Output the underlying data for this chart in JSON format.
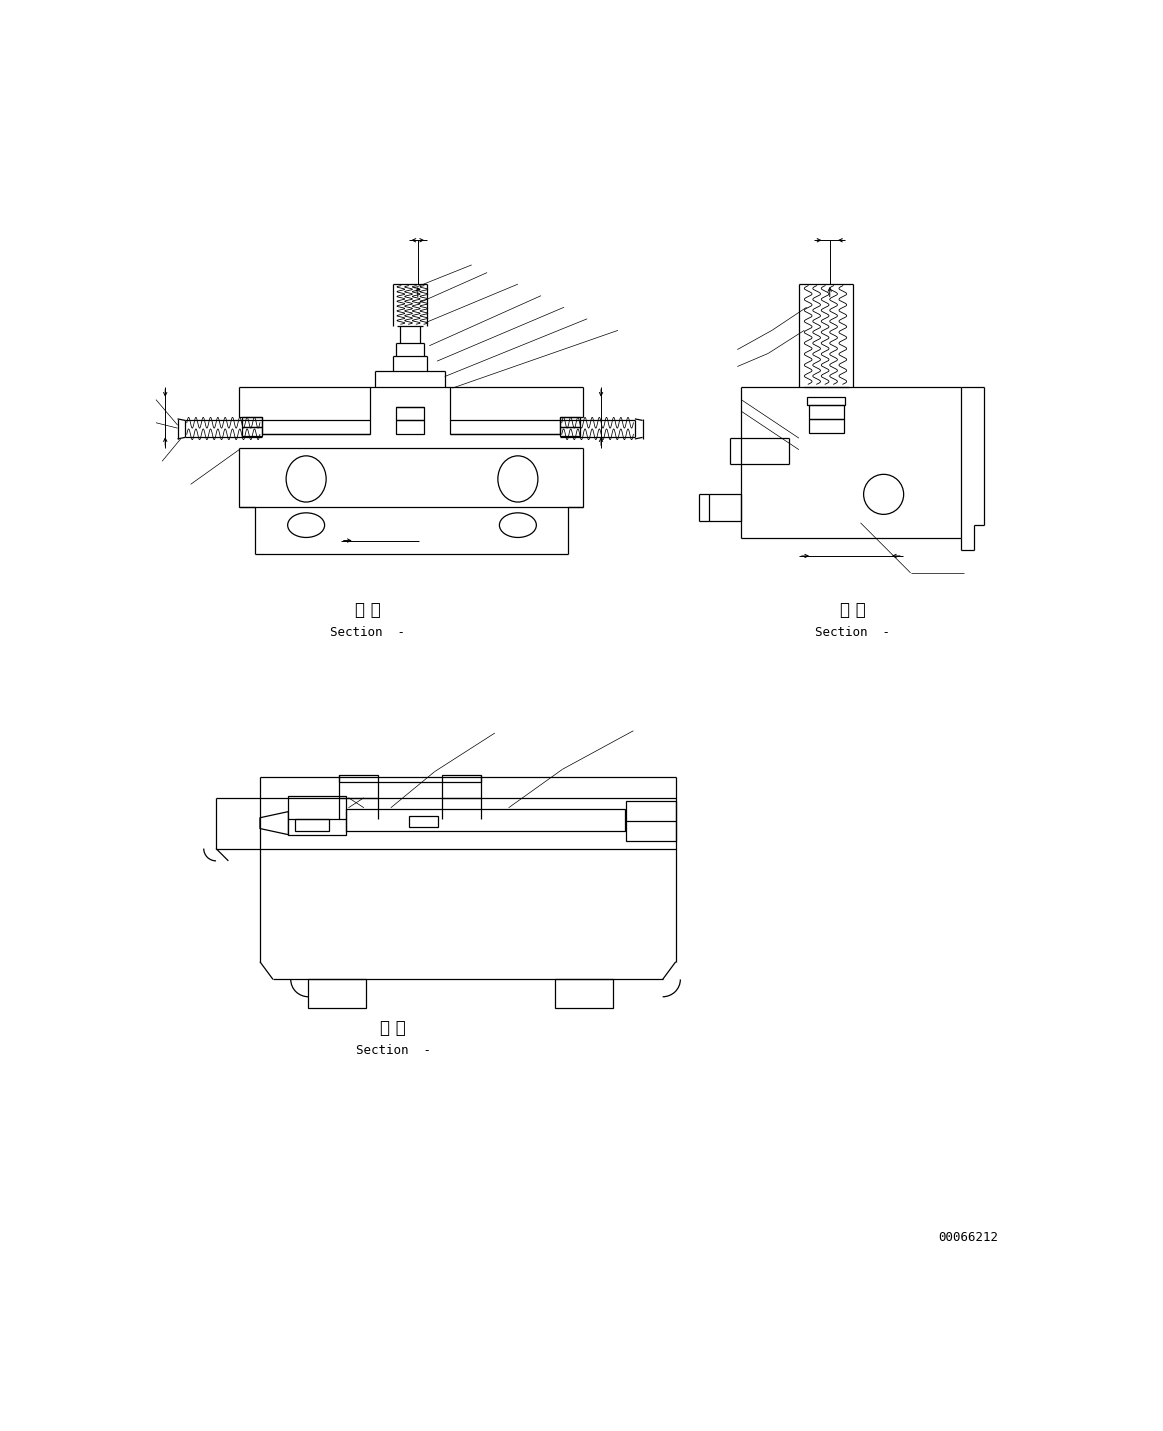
{
  "background_color": "#ffffff",
  "line_color": "#000000",
  "fig_width": 11.63,
  "fig_height": 14.31,
  "dpi": 100,
  "section_label_jp": "断 面",
  "section_label_en": "Section  -",
  "part_number": "00066212"
}
